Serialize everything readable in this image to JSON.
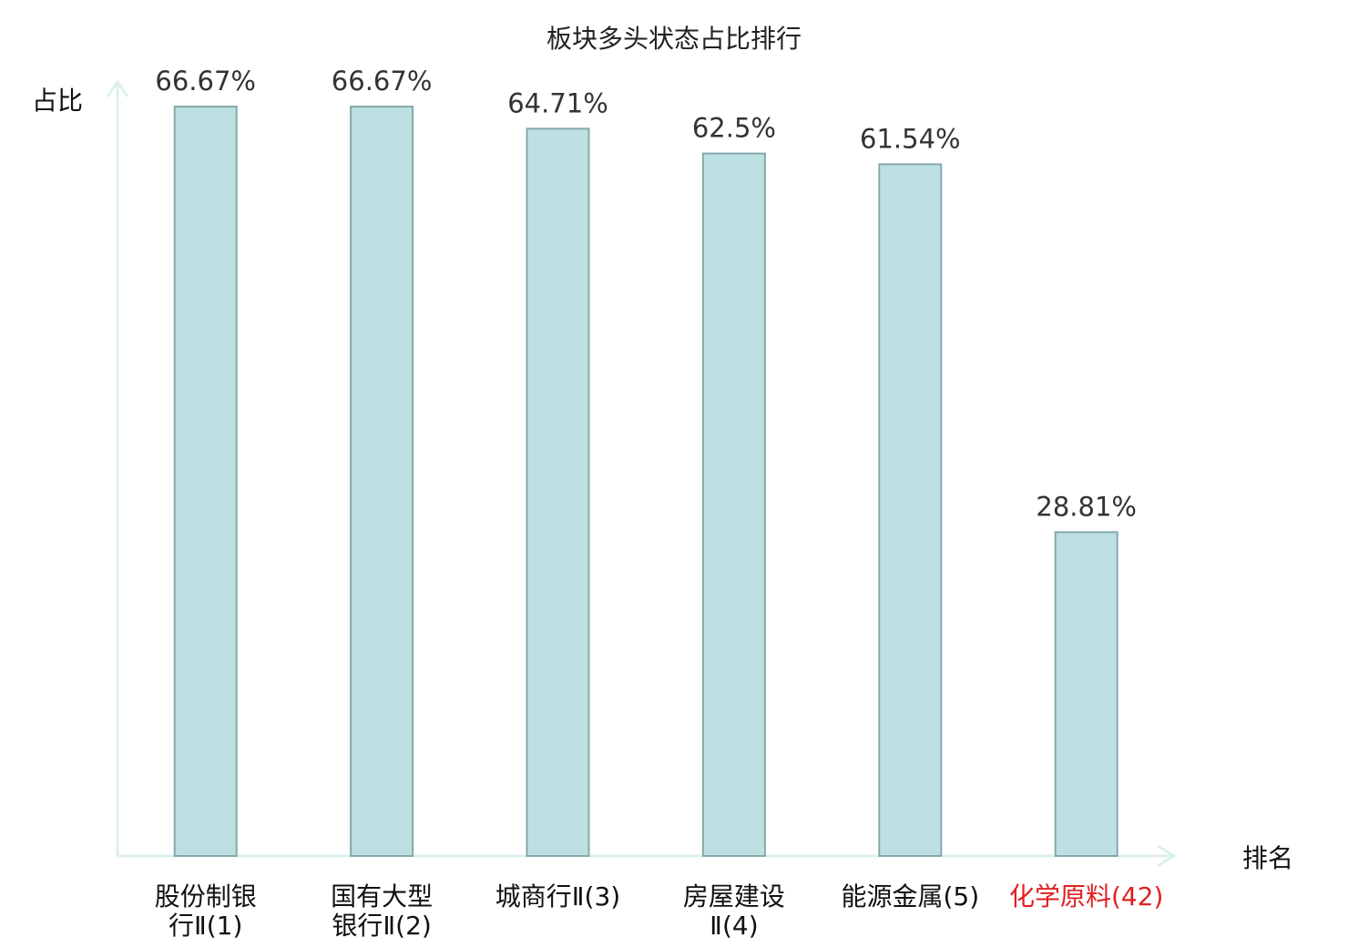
{
  "chart_data": {
    "type": "bar",
    "title": "板块多头状态占比排行",
    "ylabel": "占比",
    "xlabel": "排名",
    "ylim": [
      0,
      70
    ],
    "grid": false,
    "categories": [
      {
        "lines": [
          "股份制银",
          "行Ⅱ(1)"
        ],
        "highlight": false
      },
      {
        "lines": [
          "国有大型",
          "银行Ⅱ(2)"
        ],
        "highlight": false
      },
      {
        "lines": [
          "城商行Ⅱ(3)"
        ],
        "highlight": false
      },
      {
        "lines": [
          "房屋建设",
          "Ⅱ(4)"
        ],
        "highlight": false
      },
      {
        "lines": [
          "能源金属(5)"
        ],
        "highlight": false
      },
      {
        "lines": [
          "化学原料(42)"
        ],
        "highlight": true
      }
    ],
    "values": [
      66.67,
      66.67,
      64.71,
      62.5,
      61.54,
      28.81
    ],
    "value_labels": [
      "66.67%",
      "66.67%",
      "64.71%",
      "62.5%",
      "61.54%",
      "28.81%"
    ],
    "colors": {
      "bar_fill": "#bde0e3",
      "bar_stroke": "#86a8ab",
      "axis": "#ddf0ee",
      "label_normal": "#111111",
      "label_highlight": "#e02020"
    }
  }
}
